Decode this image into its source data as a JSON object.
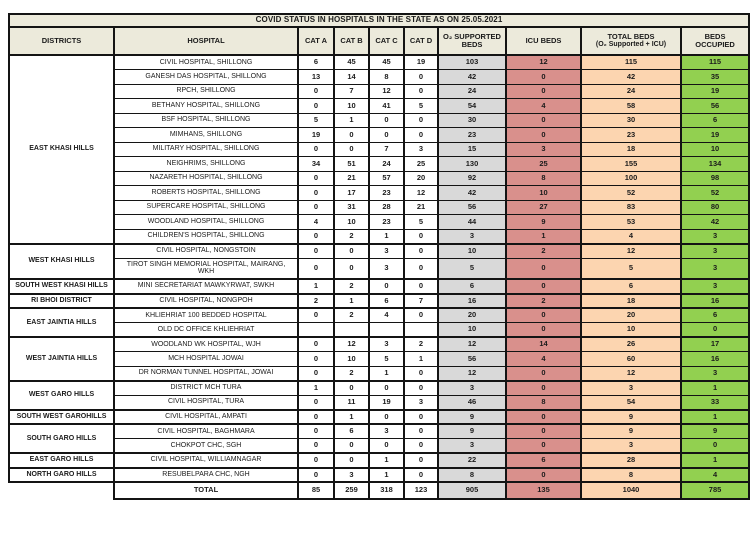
{
  "title": "COVID STATUS IN HOSPITALS IN THE STATE AS ON 25.05.2021",
  "header": {
    "districts": "DISTRICTS",
    "hospital": "HOSPITAL",
    "cat_a": "CAT A",
    "cat_b": "CAT B",
    "cat_c": "CAT C",
    "cat_d": "CAT D",
    "o2_beds": "O₂ SUPPORTED BEDS",
    "icu_beds": "ICU BEDS",
    "total_beds_line1": "TOTAL BEDS",
    "total_beds_line2": "(O₂ Supported + ICU)",
    "beds_occupied": "BEDS OCCUPIED"
  },
  "colors": {
    "cream": "#eceadb",
    "gray": "#d9d9d9",
    "red": "#d9908c",
    "peach": "#fcd5b0",
    "green": "#92d050",
    "border": "#141414"
  },
  "value_columns": [
    "cat_a",
    "cat_b",
    "cat_c",
    "cat_d",
    "o2_beds",
    "icu_beds",
    "total_beds",
    "beds_occupied"
  ],
  "districts": [
    {
      "name": "EAST KHASI HILLS",
      "hospitals": [
        {
          "name": "CIVIL HOSPITAL, SHILLONG",
          "values": [
            "6",
            "45",
            "45",
            "19",
            "103",
            "12",
            "115",
            "115"
          ]
        },
        {
          "name": "GANESH DAS HOSPITAL, SHILLONG",
          "values": [
            "13",
            "14",
            "8",
            "0",
            "42",
            "0",
            "42",
            "35"
          ]
        },
        {
          "name": "RPCH, SHILLONG",
          "values": [
            "0",
            "7",
            "12",
            "0",
            "24",
            "0",
            "24",
            "19"
          ]
        },
        {
          "name": "BETHANY HOSPITAL, SHILLONG",
          "values": [
            "0",
            "10",
            "41",
            "5",
            "54",
            "4",
            "58",
            "56"
          ]
        },
        {
          "name": "BSF HOSPITAL, SHILLONG",
          "values": [
            "5",
            "1",
            "0",
            "0",
            "30",
            "0",
            "30",
            "6"
          ]
        },
        {
          "name": "MIMHANS, SHILLONG",
          "values": [
            "19",
            "0",
            "0",
            "0",
            "23",
            "0",
            "23",
            "19"
          ]
        },
        {
          "name": "MILITARY HOSPITAL, SHILLONG",
          "values": [
            "0",
            "0",
            "7",
            "3",
            "15",
            "3",
            "18",
            "10"
          ]
        },
        {
          "name": "NEIGHRIMS, SHILLONG",
          "values": [
            "34",
            "51",
            "24",
            "25",
            "130",
            "25",
            "155",
            "134"
          ]
        },
        {
          "name": "NAZARETH HOSPITAL, SHILLONG",
          "values": [
            "0",
            "21",
            "57",
            "20",
            "92",
            "8",
            "100",
            "98"
          ]
        },
        {
          "name": "ROBERTS HOSPITAL, SHILLONG",
          "values": [
            "0",
            "17",
            "23",
            "12",
            "42",
            "10",
            "52",
            "52"
          ]
        },
        {
          "name": "SUPERCARE HOSPITAL, SHILLONG",
          "values": [
            "0",
            "31",
            "28",
            "21",
            "56",
            "27",
            "83",
            "80"
          ]
        },
        {
          "name": "WOODLAND HOSPITAL, SHILLONG",
          "values": [
            "4",
            "10",
            "23",
            "5",
            "44",
            "9",
            "53",
            "42"
          ]
        },
        {
          "name": "CHILDREN'S HOSPITAL, SHILLONG",
          "values": [
            "0",
            "2",
            "1",
            "0",
            "3",
            "1",
            "4",
            "3"
          ]
        }
      ]
    },
    {
      "name": "WEST KHASI HILLS",
      "hospitals": [
        {
          "name": "CIVIL HOSPITAL, NONGSTOIN",
          "values": [
            "0",
            "0",
            "3",
            "0",
            "10",
            "2",
            "12",
            "3"
          ]
        },
        {
          "name": "TIROT SINGH MEMORIAL HOSPITAL, MAIRANG, WKH",
          "values": [
            "0",
            "0",
            "3",
            "0",
            "5",
            "0",
            "5",
            "3"
          ]
        }
      ]
    },
    {
      "name": "SOUTH WEST KHASI HILLS",
      "hospitals": [
        {
          "name": "MINI SECRETARIAT MAWKYRWAT, SWKH",
          "values": [
            "1",
            "2",
            "0",
            "0",
            "6",
            "0",
            "6",
            "3"
          ]
        }
      ]
    },
    {
      "name": "RI BHOI DISTRICT",
      "hospitals": [
        {
          "name": "CIVIL HOSPITAL, NONGPOH",
          "values": [
            "2",
            "1",
            "6",
            "7",
            "16",
            "2",
            "18",
            "16"
          ]
        }
      ]
    },
    {
      "name": "EAST JAINTIA HILLS",
      "hospitals": [
        {
          "name": "KHLIEHRIAT 100 BEDDED HOSPITAL",
          "values": [
            "0",
            "2",
            "4",
            "0",
            "20",
            "0",
            "20",
            "6"
          ]
        },
        {
          "name": "OLD DC OFFICE KHLIEHRIAT",
          "values": [
            "",
            "",
            "",
            "",
            "10",
            "0",
            "10",
            "0"
          ]
        }
      ]
    },
    {
      "name": "WEST JAINTIA HILLS",
      "hospitals": [
        {
          "name": "WOODLAND WK HOSPITAL, WJH",
          "values": [
            "0",
            "12",
            "3",
            "2",
            "12",
            "14",
            "26",
            "17"
          ]
        },
        {
          "name": "MCH HOSPITAL JOWAI",
          "values": [
            "0",
            "10",
            "5",
            "1",
            "56",
            "4",
            "60",
            "16"
          ]
        },
        {
          "name": "DR NORMAN TUNNEL HOSPITAL, JOWAI",
          "values": [
            "0",
            "2",
            "1",
            "0",
            "12",
            "0",
            "12",
            "3"
          ]
        }
      ]
    },
    {
      "name": "WEST GARO HILLS",
      "hospitals": [
        {
          "name": "DISTRICT MCH TURA",
          "values": [
            "1",
            "0",
            "0",
            "0",
            "3",
            "0",
            "3",
            "1"
          ]
        },
        {
          "name": "CIVIL HOSPITAL, TURA",
          "values": [
            "0",
            "11",
            "19",
            "3",
            "46",
            "8",
            "54",
            "33"
          ]
        }
      ]
    },
    {
      "name": "SOUTH WEST GAROHILLS",
      "hospitals": [
        {
          "name": "CIVIL HOSPITAL, AMPATI",
          "values": [
            "0",
            "1",
            "0",
            "0",
            "9",
            "0",
            "9",
            "1"
          ]
        }
      ]
    },
    {
      "name": "SOUTH GARO HILLS",
      "hospitals": [
        {
          "name": "CIVIL HOSPITAL, BAGHMARA",
          "values": [
            "0",
            "6",
            "3",
            "0",
            "9",
            "0",
            "9",
            "9"
          ]
        },
        {
          "name": "CHOKPOT CHC, SGH",
          "values": [
            "0",
            "0",
            "0",
            "0",
            "3",
            "0",
            "3",
            "0"
          ]
        }
      ]
    },
    {
      "name": "EAST GARO HILLS",
      "hospitals": [
        {
          "name": "CIVIL HOSPITAL, WILLIAMNAGAR",
          "values": [
            "0",
            "0",
            "1",
            "0",
            "22",
            "6",
            "28",
            "1"
          ]
        }
      ]
    },
    {
      "name": "NORTH GARO HILLS",
      "hospitals": [
        {
          "name": "RESUBELPARA CHC, NGH",
          "values": [
            "0",
            "3",
            "1",
            "0",
            "8",
            "0",
            "8",
            "4"
          ]
        }
      ]
    }
  ],
  "total_row": {
    "label": "TOTAL",
    "values": [
      "85",
      "259",
      "318",
      "123",
      "905",
      "135",
      "1040",
      "785"
    ]
  }
}
